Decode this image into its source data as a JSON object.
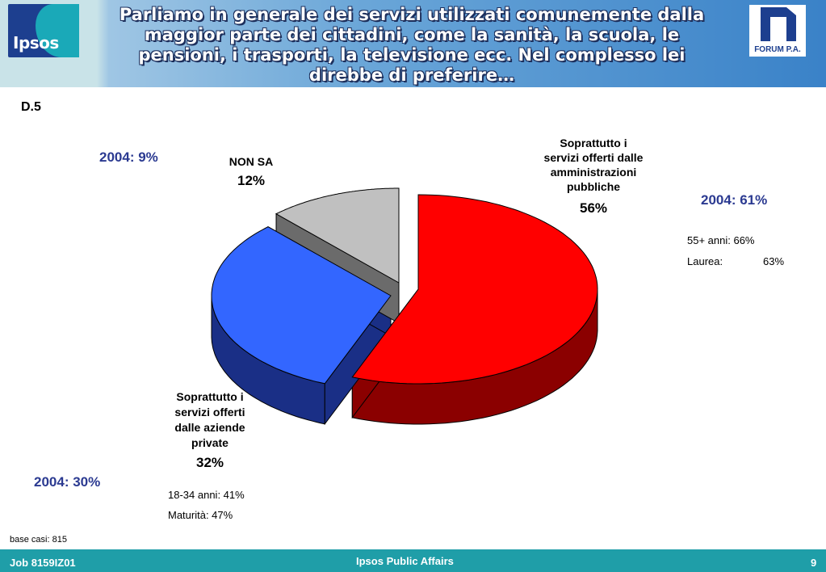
{
  "header": {
    "title": "Parliamo in generale dei servizi utilizzati comunemente dalla maggior parte dei cittadini, come la sanità, la scuola, le pensioni, i trasporti, la televisione ecc. Nel complesso lei direbbe di preferire…",
    "logo_left": "Ipsos",
    "logo_right": "FORUM P.A."
  },
  "question_code": "D.5",
  "chart_data": {
    "type": "pie",
    "title": "",
    "slices": [
      {
        "label": "Soprattutto i servizi offerti dalle amministrazioni pubbliche",
        "value": 56,
        "value_label": "56%",
        "color": "#ff0000",
        "prev_label": "2004: 61%",
        "notes": [
          "55+ anni: 66%",
          "Laurea:",
          "63%"
        ]
      },
      {
        "label": "Soprattutto i servizi offerti dalle aziende private",
        "value": 32,
        "value_label": "32%",
        "color": "#3366ff",
        "prev_label": "2004: 30%",
        "notes": [
          "18-34 anni: 41%",
          "Maturità: 47%"
        ]
      },
      {
        "label": "NON SA",
        "value": 12,
        "value_label": "12%",
        "color": "#c0c0c0",
        "prev_label": "2004: 9%",
        "notes": []
      }
    ]
  },
  "footer": {
    "base": "base casi: 815",
    "job": "Job 8159IZ01",
    "center": "Ipsos Public Affairs",
    "page": "9"
  }
}
